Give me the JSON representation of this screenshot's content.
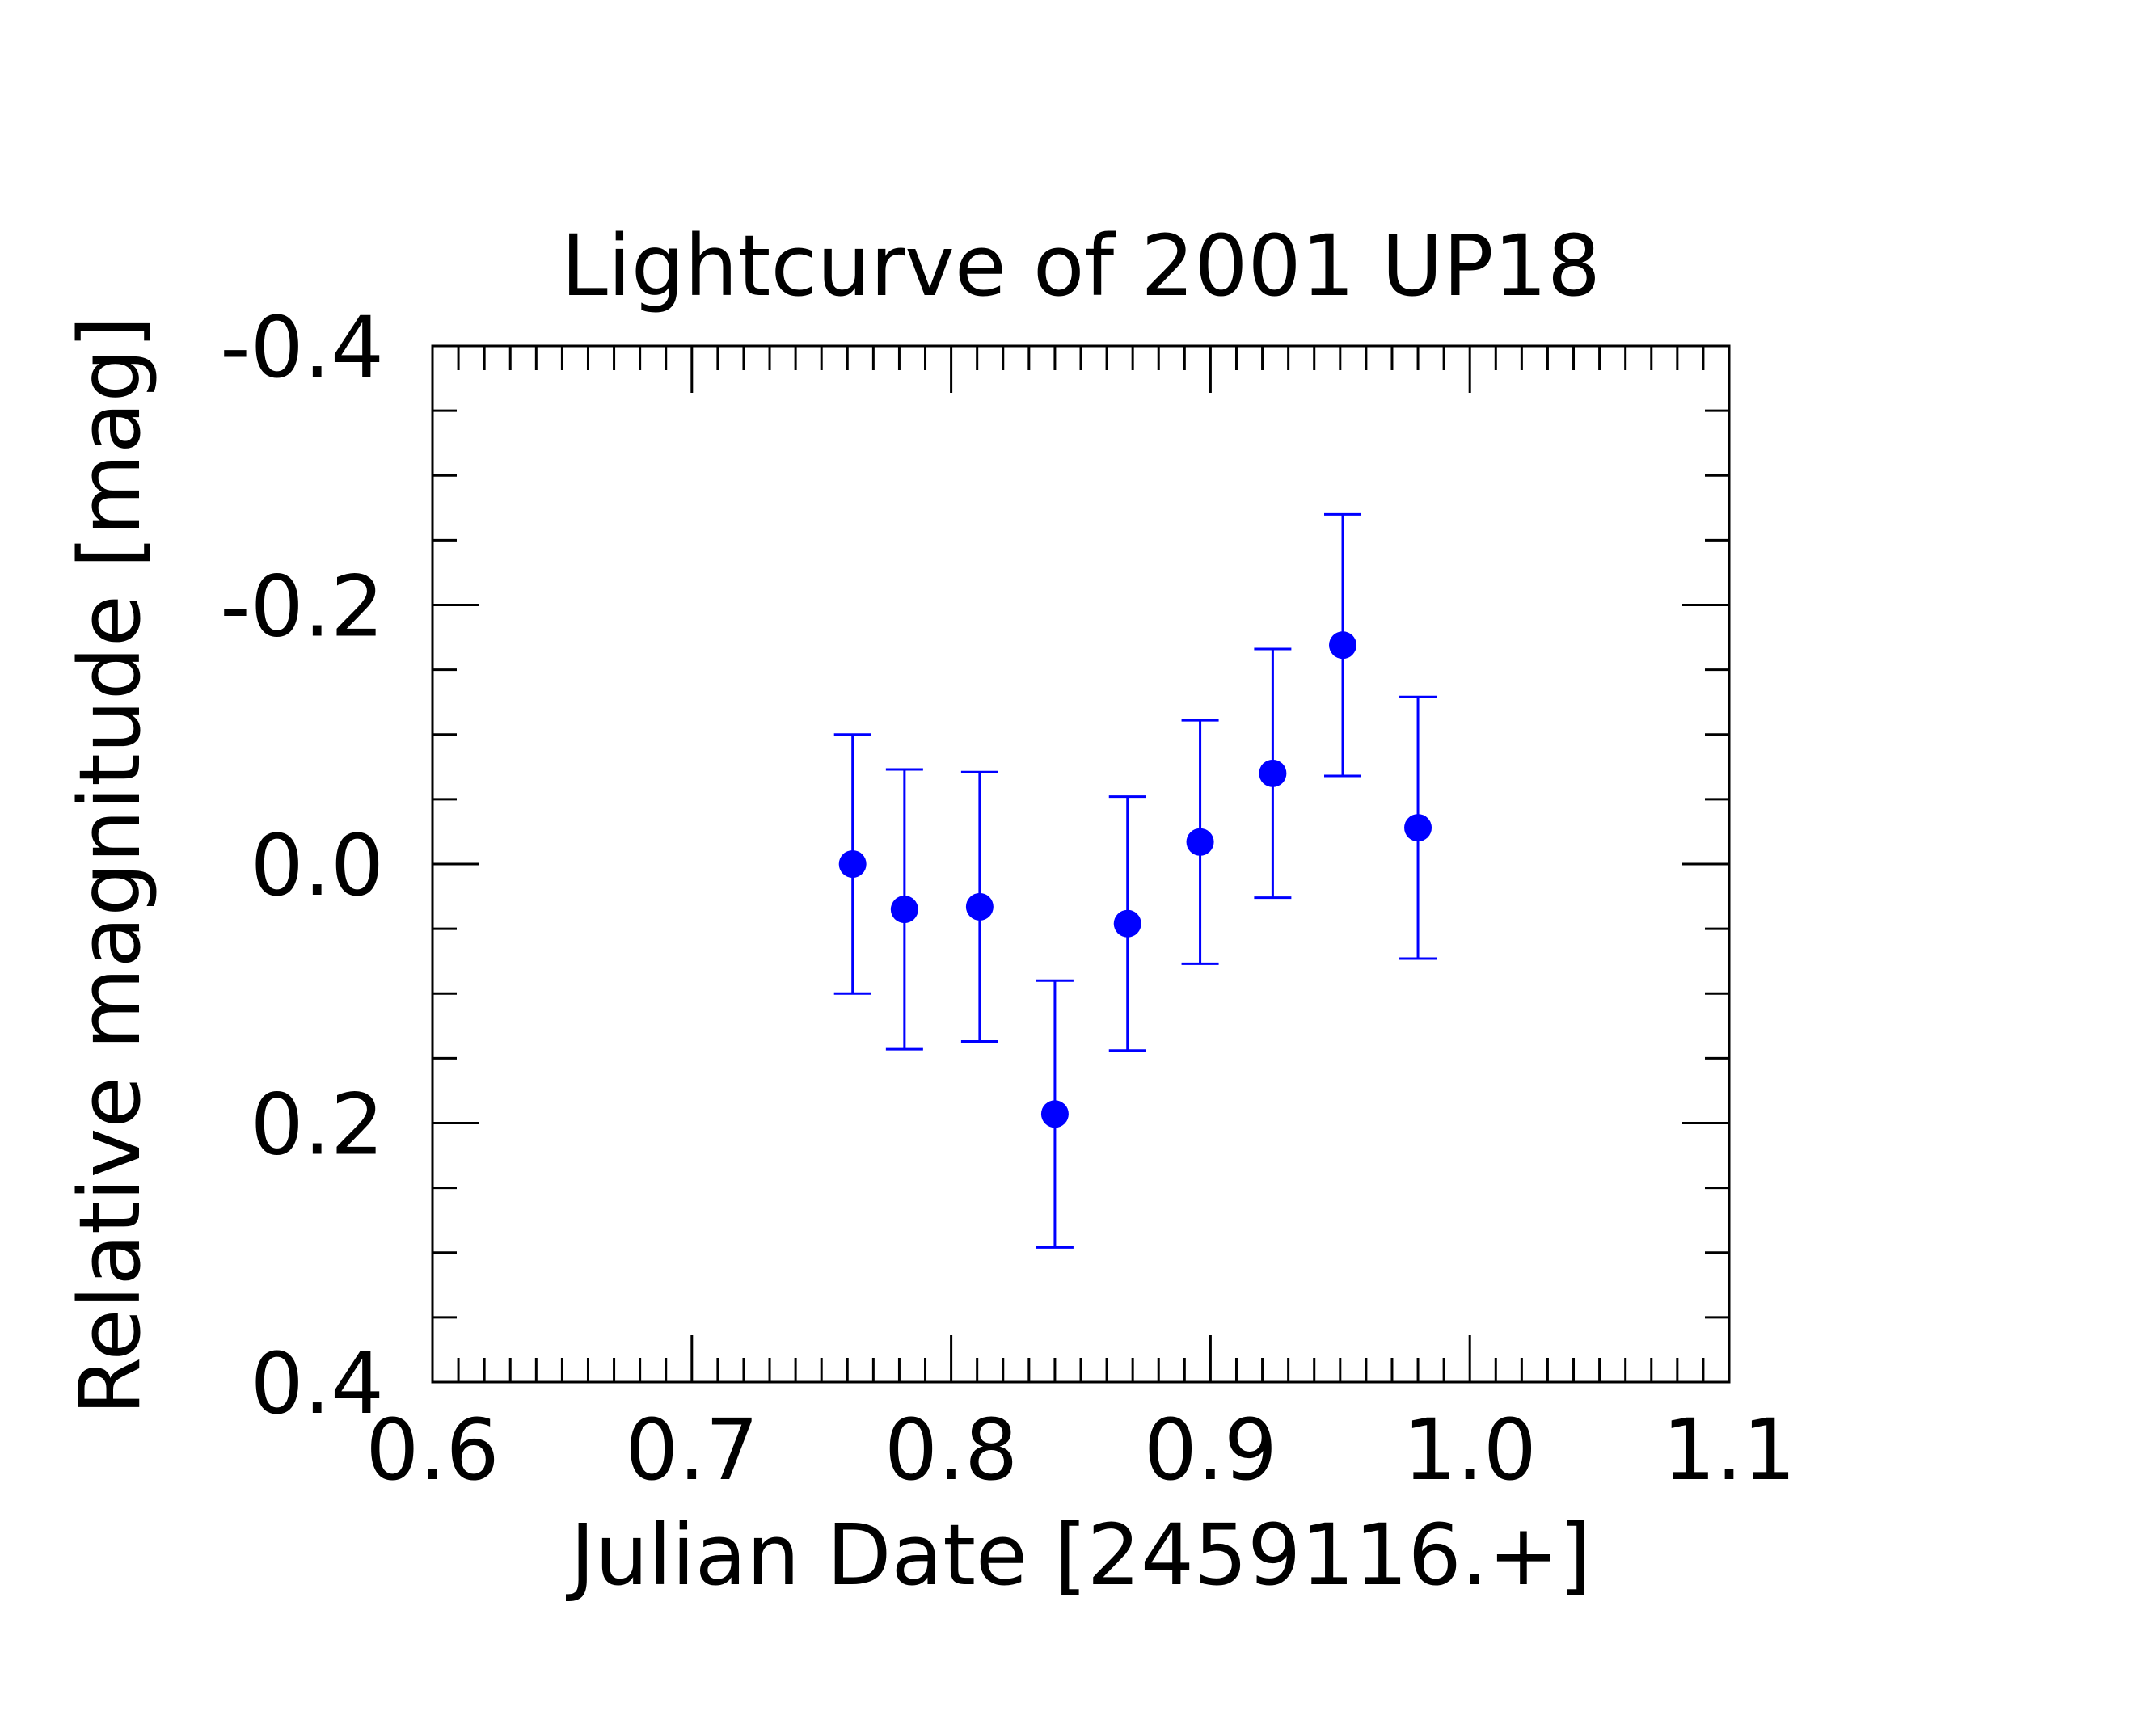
{
  "chart_data": {
    "type": "scatter",
    "title": "Lightcurve of 2001 UP18",
    "xlabel": "Julian Date [2459116.+]",
    "ylabel": "Relative magnitude [mag]",
    "xlim": [
      0.6,
      1.1
    ],
    "ylim": [
      0.4,
      -0.4
    ],
    "y_inverted": true,
    "grid": false,
    "legend": "none",
    "x_ticks": [
      0.6,
      0.7,
      0.8,
      0.9,
      1.0,
      1.1
    ],
    "x_tick_labels": [
      "0.6",
      "0.7",
      "0.8",
      "0.9",
      "1.0",
      "1.1"
    ],
    "y_ticks": [
      -0.4,
      -0.2,
      0.0,
      0.2,
      0.4
    ],
    "y_tick_labels": [
      "-0.4",
      "-0.2",
      "0.0",
      "0.2",
      "0.4"
    ],
    "marker_color": "#0000ff",
    "series": [
      {
        "points": [
          {
            "x": 0.762,
            "y": 0.0,
            "err": 0.1
          },
          {
            "x": 0.782,
            "y": 0.035,
            "err": 0.108
          },
          {
            "x": 0.811,
            "y": 0.033,
            "err": 0.104
          },
          {
            "x": 0.84,
            "y": 0.193,
            "err": 0.103
          },
          {
            "x": 0.868,
            "y": 0.046,
            "err": 0.098
          },
          {
            "x": 0.896,
            "y": -0.017,
            "err": 0.094
          },
          {
            "x": 0.924,
            "y": -0.07,
            "err": 0.096
          },
          {
            "x": 0.951,
            "y": -0.169,
            "err": 0.101
          },
          {
            "x": 0.98,
            "y": -0.028,
            "err": 0.101
          }
        ]
      }
    ]
  }
}
